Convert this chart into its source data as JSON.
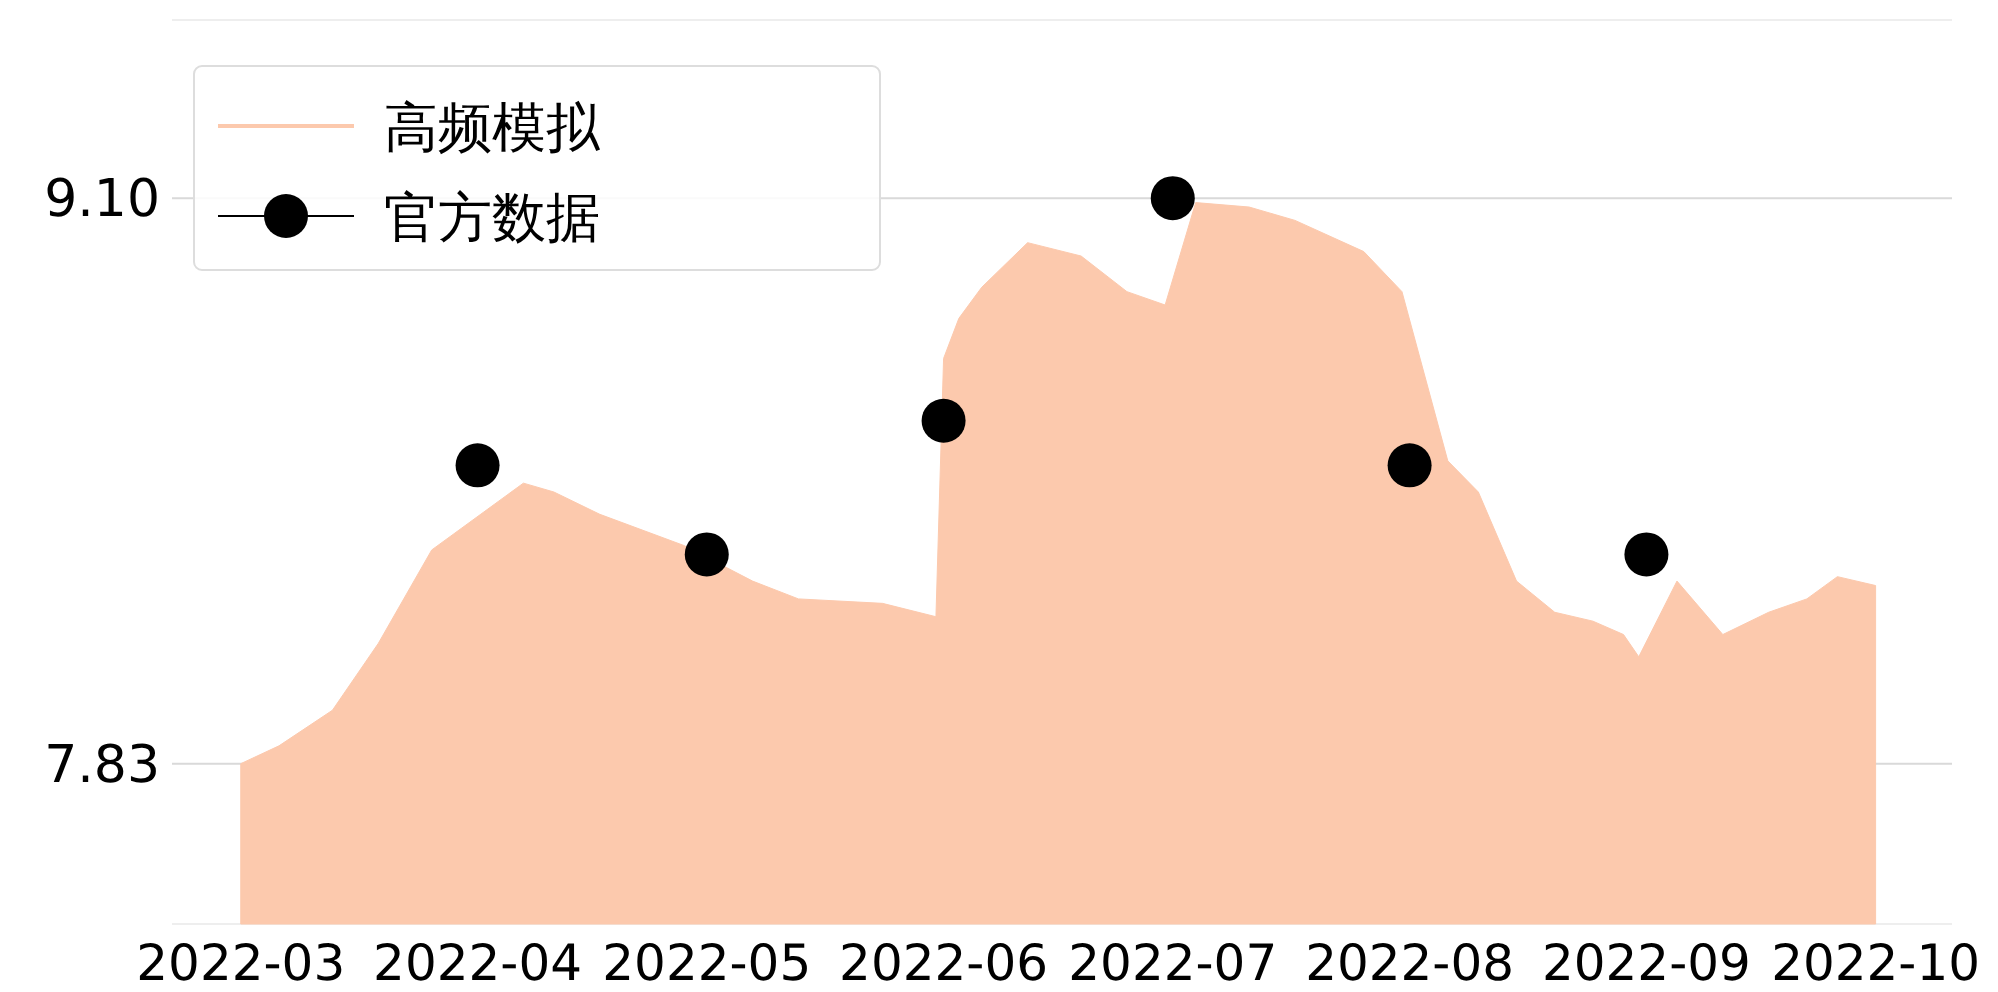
{
  "chart_data": {
    "type": "area",
    "legend": "top left",
    "grid": "y",
    "xlim": [
      "2022-02-20",
      "2022-10-11"
    ],
    "ylim": [
      7.47,
      9.5
    ],
    "xticks": [
      "2022-03",
      "2022-04",
      "2022-05",
      "2022-06",
      "2022-07",
      "2022-08",
      "2022-09",
      "2022-10"
    ],
    "yticks": [
      {
        "value": 7.83,
        "label": "7.83"
      },
      {
        "value": 9.1,
        "label": "9.10"
      }
    ],
    "series": [
      {
        "name": "高频模拟",
        "color": "#fcc9ad",
        "x": [
          "2022-03-01",
          "2022-03-06",
          "2022-03-13",
          "2022-03-19",
          "2022-03-26",
          "2022-04-07",
          "2022-04-11",
          "2022-04-17",
          "2022-04-28",
          "2022-05-07",
          "2022-05-13",
          "2022-05-24",
          "2022-05-31",
          "2022-06-01",
          "2022-06-03",
          "2022-06-06",
          "2022-06-12",
          "2022-06-19",
          "2022-06-25",
          "2022-06-30",
          "2022-07-04",
          "2022-07-11",
          "2022-07-17",
          "2022-07-26",
          "2022-07-31",
          "2022-08-06",
          "2022-08-10",
          "2022-08-15",
          "2022-08-20",
          "2022-08-25",
          "2022-08-29",
          "2022-08-31",
          "2022-09-05",
          "2022-09-11",
          "2022-09-17",
          "2022-09-22",
          "2022-09-26",
          "2022-10-01"
        ],
        "values": [
          7.83,
          7.87,
          7.95,
          8.1,
          8.31,
          8.46,
          8.44,
          8.39,
          8.32,
          8.24,
          8.2,
          8.19,
          8.16,
          8.74,
          8.83,
          8.9,
          9.0,
          8.97,
          8.89,
          8.86,
          9.09,
          9.08,
          9.05,
          8.98,
          8.89,
          8.51,
          8.44,
          8.24,
          8.17,
          8.15,
          8.12,
          8.07,
          8.24,
          8.12,
          8.17,
          8.2,
          8.25,
          8.23
        ]
      },
      {
        "name": "官方数据",
        "type": "scatter",
        "color": "#000000",
        "marker": "circle",
        "x": [
          "2022-04-01",
          "2022-05-01",
          "2022-06-01",
          "2022-07-01",
          "2022-08-01",
          "2022-09-01"
        ],
        "values": [
          8.5,
          8.3,
          8.6,
          9.1,
          8.5,
          8.3
        ]
      }
    ]
  }
}
